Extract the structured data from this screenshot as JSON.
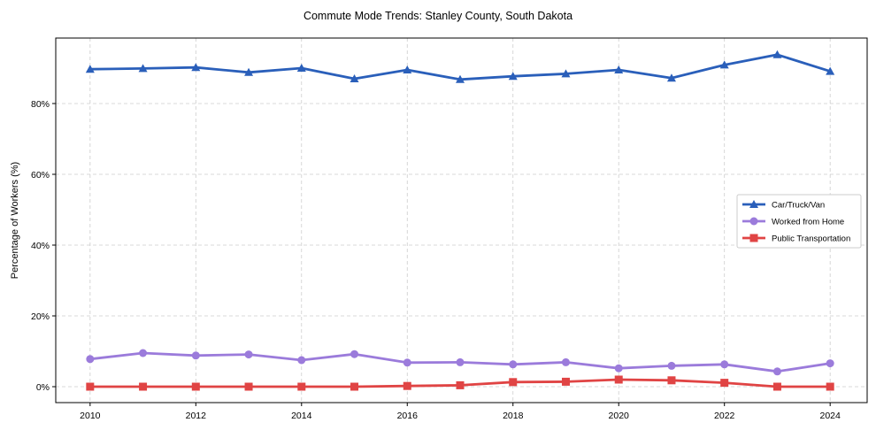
{
  "chart_data": {
    "type": "line",
    "title": "Commute Mode Trends: Stanley County, South Dakota",
    "xlabel": "",
    "ylabel": "Percentage of Workers (%)",
    "x": [
      2010,
      2011,
      2012,
      2013,
      2014,
      2015,
      2016,
      2017,
      2018,
      2019,
      2020,
      2021,
      2022,
      2023,
      2024
    ],
    "xticks": [
      2010,
      2012,
      2014,
      2016,
      2018,
      2020,
      2022,
      2024
    ],
    "xtick_labels": [
      "2010",
      "2012",
      "2014",
      "2016",
      "2018",
      "2020",
      "2022",
      "2024"
    ],
    "yticks": [
      0,
      20,
      40,
      60,
      80
    ],
    "ytick_labels": [
      "0%",
      "20%",
      "40%",
      "60%",
      "80%"
    ],
    "xlim": [
      2009.35,
      2024.7
    ],
    "ylim": [
      -4.5,
      98.5
    ],
    "grid": true,
    "legend_position": "center-right",
    "series": [
      {
        "name": "Car/Truck/Van",
        "color": "#2a5fba",
        "marker": "triangle",
        "values": [
          89.7,
          89.9,
          90.2,
          88.8,
          90.0,
          87.0,
          89.5,
          86.8,
          87.7,
          88.4,
          89.5,
          87.2,
          90.9,
          93.8,
          89.1
        ]
      },
      {
        "name": "Worked from Home",
        "color": "#9b7bdb",
        "marker": "circle",
        "values": [
          7.8,
          9.5,
          8.8,
          9.1,
          7.5,
          9.2,
          6.8,
          6.9,
          6.3,
          6.9,
          5.2,
          5.9,
          6.3,
          4.3,
          6.6
        ]
      },
      {
        "name": "Public Transportation",
        "color": "#e04444",
        "marker": "square",
        "values": [
          0,
          0,
          0,
          0,
          0,
          0,
          0.2,
          0.4,
          1.3,
          1.4,
          2.0,
          1.8,
          1.1,
          0,
          0
        ]
      }
    ]
  }
}
